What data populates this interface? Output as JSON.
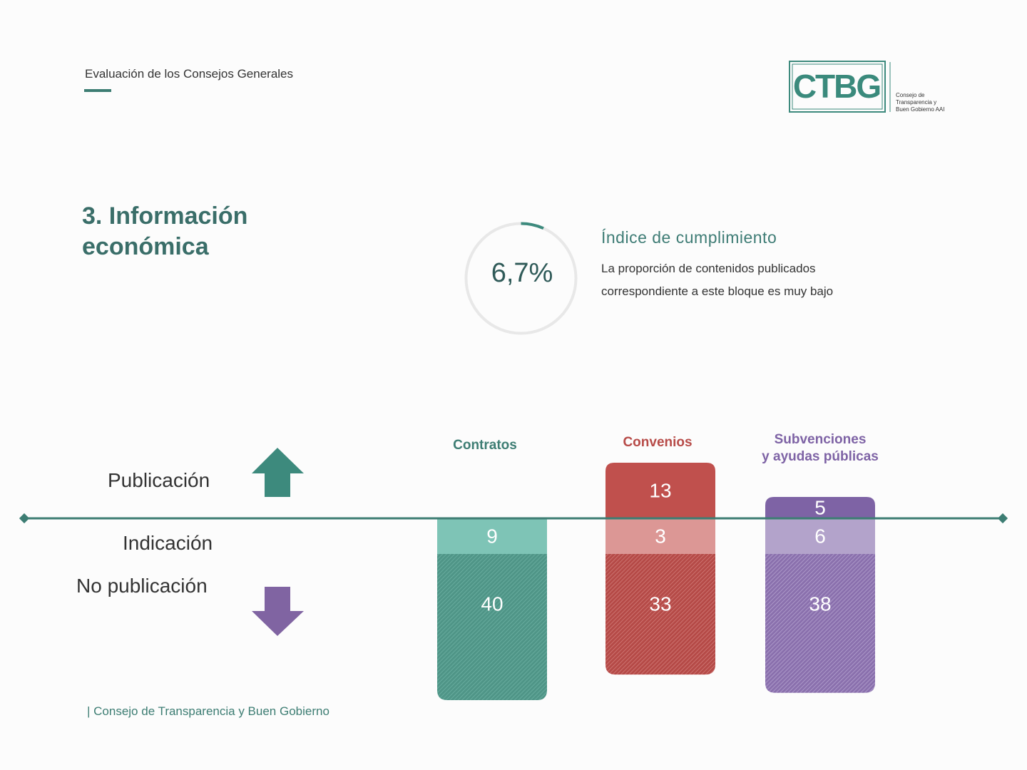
{
  "header": {
    "title": "Evaluación de los Consejos Generales"
  },
  "logo": {
    "text": "CTBG",
    "subtitle_lines": [
      "Consejo de",
      "Transparencia y",
      "Buen Gobierno AAI"
    ]
  },
  "section": {
    "title": "3. Información económica"
  },
  "gauge": {
    "value_label": "6,7%",
    "value": 6.7
  },
  "index": {
    "title": "Índice de cumplimiento",
    "description": "La proporción de contenidos publicados correspondiente a este bloque es muy bajo"
  },
  "rows": {
    "publicacion": "Publicación",
    "indicacion": "Indicación",
    "no_publicacion": "No publicación"
  },
  "colors": {
    "contratos": "#3d8a7d",
    "contratos_light": "#7ec4b6",
    "convenios": "#c0504d",
    "convenios_light": "#dc9795",
    "subvenciones": "#7e63a5",
    "subvenciones_light": "#b3a3cb",
    "up_arrow": "#3d8a7d",
    "down_arrow": "#8064a2",
    "axis": "#3d7d73"
  },
  "chart_data": {
    "type": "bar",
    "categories": [
      "Contratos",
      "Convenios",
      "Subvenciones\ny ayudas públicas"
    ],
    "series": [
      {
        "name": "Publicación",
        "values": [
          0,
          13,
          5
        ]
      },
      {
        "name": "Indicación",
        "values": [
          9,
          3,
          6
        ]
      },
      {
        "name": "No publicación",
        "values": [
          40,
          33,
          38
        ]
      }
    ]
  },
  "footer": {
    "text": "| Consejo de Transparencia y Buen Gobierno"
  }
}
